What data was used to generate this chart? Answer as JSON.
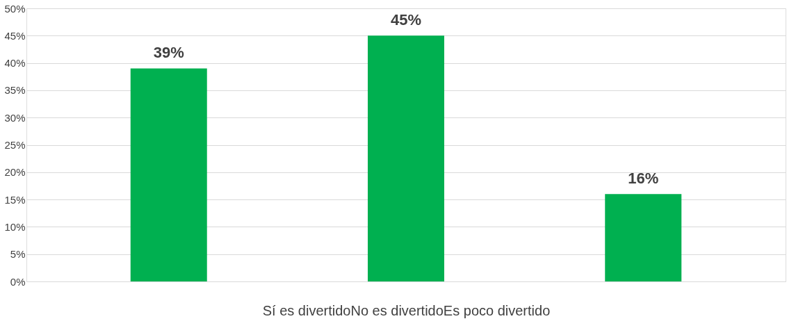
{
  "chart_data": {
    "type": "bar",
    "categories": [
      null,
      null,
      null
    ],
    "values": [
      39,
      45,
      16
    ],
    "color": "#00b050",
    "xlabel": "Sí es divertidoNo es divertidoEs poco divertido",
    "ylim": [
      0,
      50
    ],
    "yticks": [
      {
        "value": 0,
        "label": "0%"
      },
      {
        "value": 5,
        "label": "5%"
      },
      {
        "value": 10,
        "label": "10%"
      },
      {
        "value": 15,
        "label": "15%"
      },
      {
        "value": 20,
        "label": "20%"
      },
      {
        "value": 25,
        "label": "25%"
      },
      {
        "value": 30,
        "label": "30%"
      },
      {
        "value": 35,
        "label": "35%"
      },
      {
        "value": 40,
        "label": "40%"
      },
      {
        "value": 45,
        "label": "45%"
      },
      {
        "value": 50,
        "label": "50%"
      }
    ],
    "value_labels": [
      "39%",
      "45%",
      "16%"
    ],
    "grid": "y"
  }
}
